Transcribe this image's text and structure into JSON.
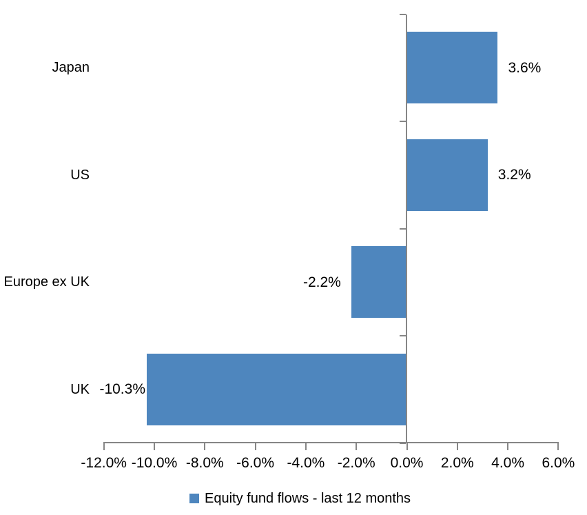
{
  "chart_data": {
    "type": "bar",
    "orientation": "horizontal",
    "categories": [
      "Japan",
      "US",
      "Europe ex UK",
      "UK"
    ],
    "values": [
      3.6,
      3.2,
      -2.2,
      -10.3
    ],
    "data_labels": [
      "3.6%",
      "3.2%",
      "-2.2%",
      "-10.3%"
    ],
    "x_tick_labels": [
      "-12.0%",
      "-10.0%",
      "-8.0%",
      "-6.0%",
      "-4.0%",
      "-2.0%",
      "0.0%",
      "2.0%",
      "4.0%",
      "6.0%"
    ],
    "x_tick_values": [
      -12,
      -10,
      -8,
      -6,
      -4,
      -2,
      0,
      2,
      4,
      6
    ],
    "xlim": [
      -12,
      6
    ],
    "grid": false,
    "title": "",
    "xlabel": "",
    "ylabel": "",
    "legend_position": "bottom",
    "legend": [
      {
        "label": "Equity fund flows - last 12 months",
        "color": "#4E86BE"
      }
    ],
    "bar_color": "#4E86BE",
    "axis_color": "#868686",
    "text_color": "#000000",
    "label_dx": [
      0,
      0,
      0,
      13
    ]
  }
}
